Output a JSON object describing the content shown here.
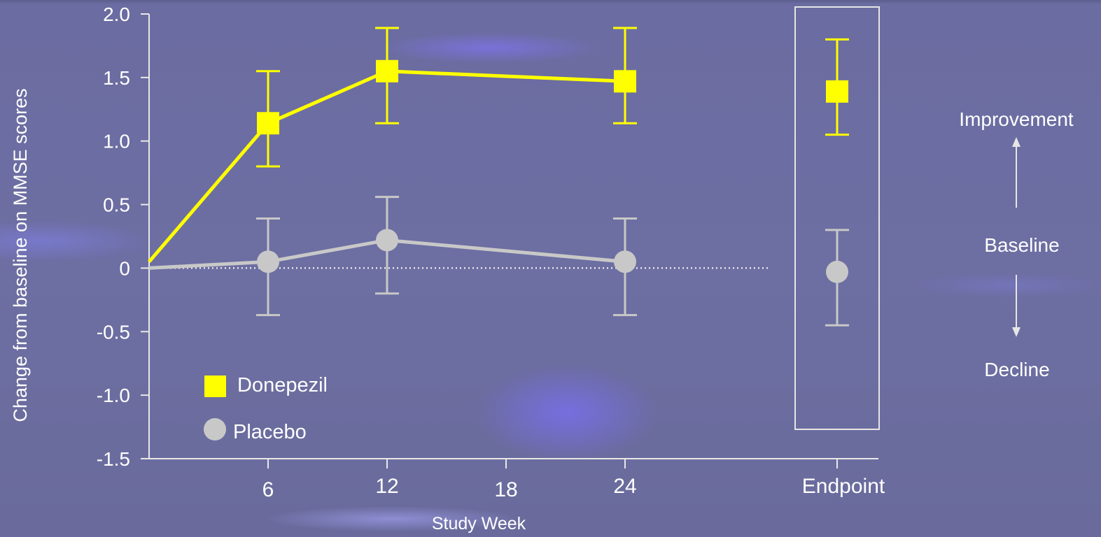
{
  "chart_data": {
    "type": "line",
    "title": "",
    "xlabel": "Study Week",
    "ylabel": "Change from baseline on MMSE  scores",
    "ylim": [
      -1.5,
      2.0
    ],
    "y_ticks": [
      "2.0",
      "1.5",
      "1.0",
      "0.5",
      "0",
      "-0.5",
      "-1.0",
      "-1.5"
    ],
    "y_tick_values": [
      2.0,
      1.5,
      1.0,
      0.5,
      0,
      -0.5,
      -1.0,
      -1.5
    ],
    "x_ticks": [
      "6",
      "12",
      "18",
      "24"
    ],
    "x_tick_values": [
      6,
      12,
      18,
      24
    ],
    "endpoint_label": "Endpoint",
    "baseline_reference": 0,
    "grid": false,
    "series": [
      {
        "name": "Donepezil",
        "color": "#ffff00",
        "marker": "square",
        "points": [
          {
            "x": 0,
            "y": 0.05
          },
          {
            "x": 6,
            "y": 1.14,
            "err_low": 0.8,
            "err_high": 1.55
          },
          {
            "x": 12,
            "y": 1.55,
            "err_low": 1.14,
            "err_high": 1.89
          },
          {
            "x": 24,
            "y": 1.47,
            "err_low": 1.14,
            "err_high": 1.89
          }
        ],
        "endpoint": {
          "y": 1.39,
          "err_low": 1.05,
          "err_high": 1.8
        }
      },
      {
        "name": "Placebo",
        "color": "#c8c8c8",
        "marker": "circle",
        "points": [
          {
            "x": 0,
            "y": 0.0
          },
          {
            "x": 6,
            "y": 0.05,
            "err_low": -0.37,
            "err_high": 0.39
          },
          {
            "x": 12,
            "y": 0.22,
            "err_low": -0.2,
            "err_high": 0.56
          },
          {
            "x": 24,
            "y": 0.05,
            "err_low": -0.37,
            "err_high": 0.39
          }
        ],
        "endpoint": {
          "y": -0.03,
          "err_low": -0.45,
          "err_high": 0.3
        }
      }
    ],
    "legend": {
      "position": "bottom-left",
      "items": [
        "Donepezil",
        "Placebo"
      ]
    },
    "annotations": {
      "improvement": "Improvement",
      "baseline": "Baseline",
      "decline": "Decline"
    }
  }
}
